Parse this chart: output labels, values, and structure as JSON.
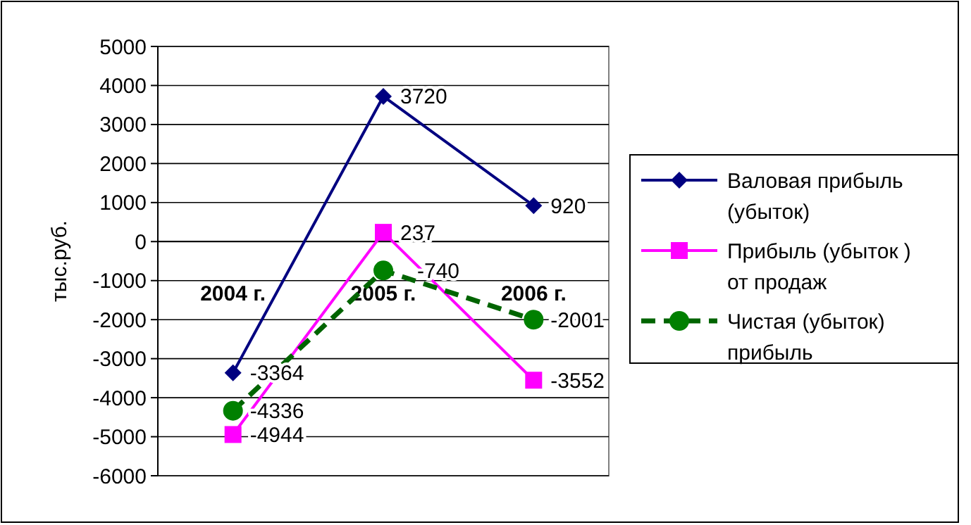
{
  "chart_data": {
    "type": "line",
    "ylabel": "тыс.руб.",
    "categories": [
      "2004 г.",
      "2005 г.",
      "2006 г."
    ],
    "series": [
      {
        "name": "Валовая прибыль (убыток)",
        "color": "#000080",
        "marker": "diamond",
        "line_style": "solid",
        "values": [
          -3364,
          3720,
          920
        ]
      },
      {
        "name": "Прибыль (убыток ) от продаж",
        "color": "#ff00ff",
        "marker": "square",
        "line_style": "solid",
        "values": [
          -4944,
          237,
          -3552
        ]
      },
      {
        "name": "Чистая (убыток) прибыль",
        "color": "#006400",
        "marker": "circle",
        "line_style": "dashed",
        "values": [
          -4336,
          -740,
          -2001
        ]
      }
    ],
    "ylim": [
      -6000,
      5000
    ],
    "yticks": [
      -6000,
      -5000,
      -4000,
      -3000,
      -2000,
      -1000,
      0,
      1000,
      2000,
      3000,
      4000,
      5000
    ],
    "grid": "y",
    "legend": "right",
    "data_labels": true
  }
}
